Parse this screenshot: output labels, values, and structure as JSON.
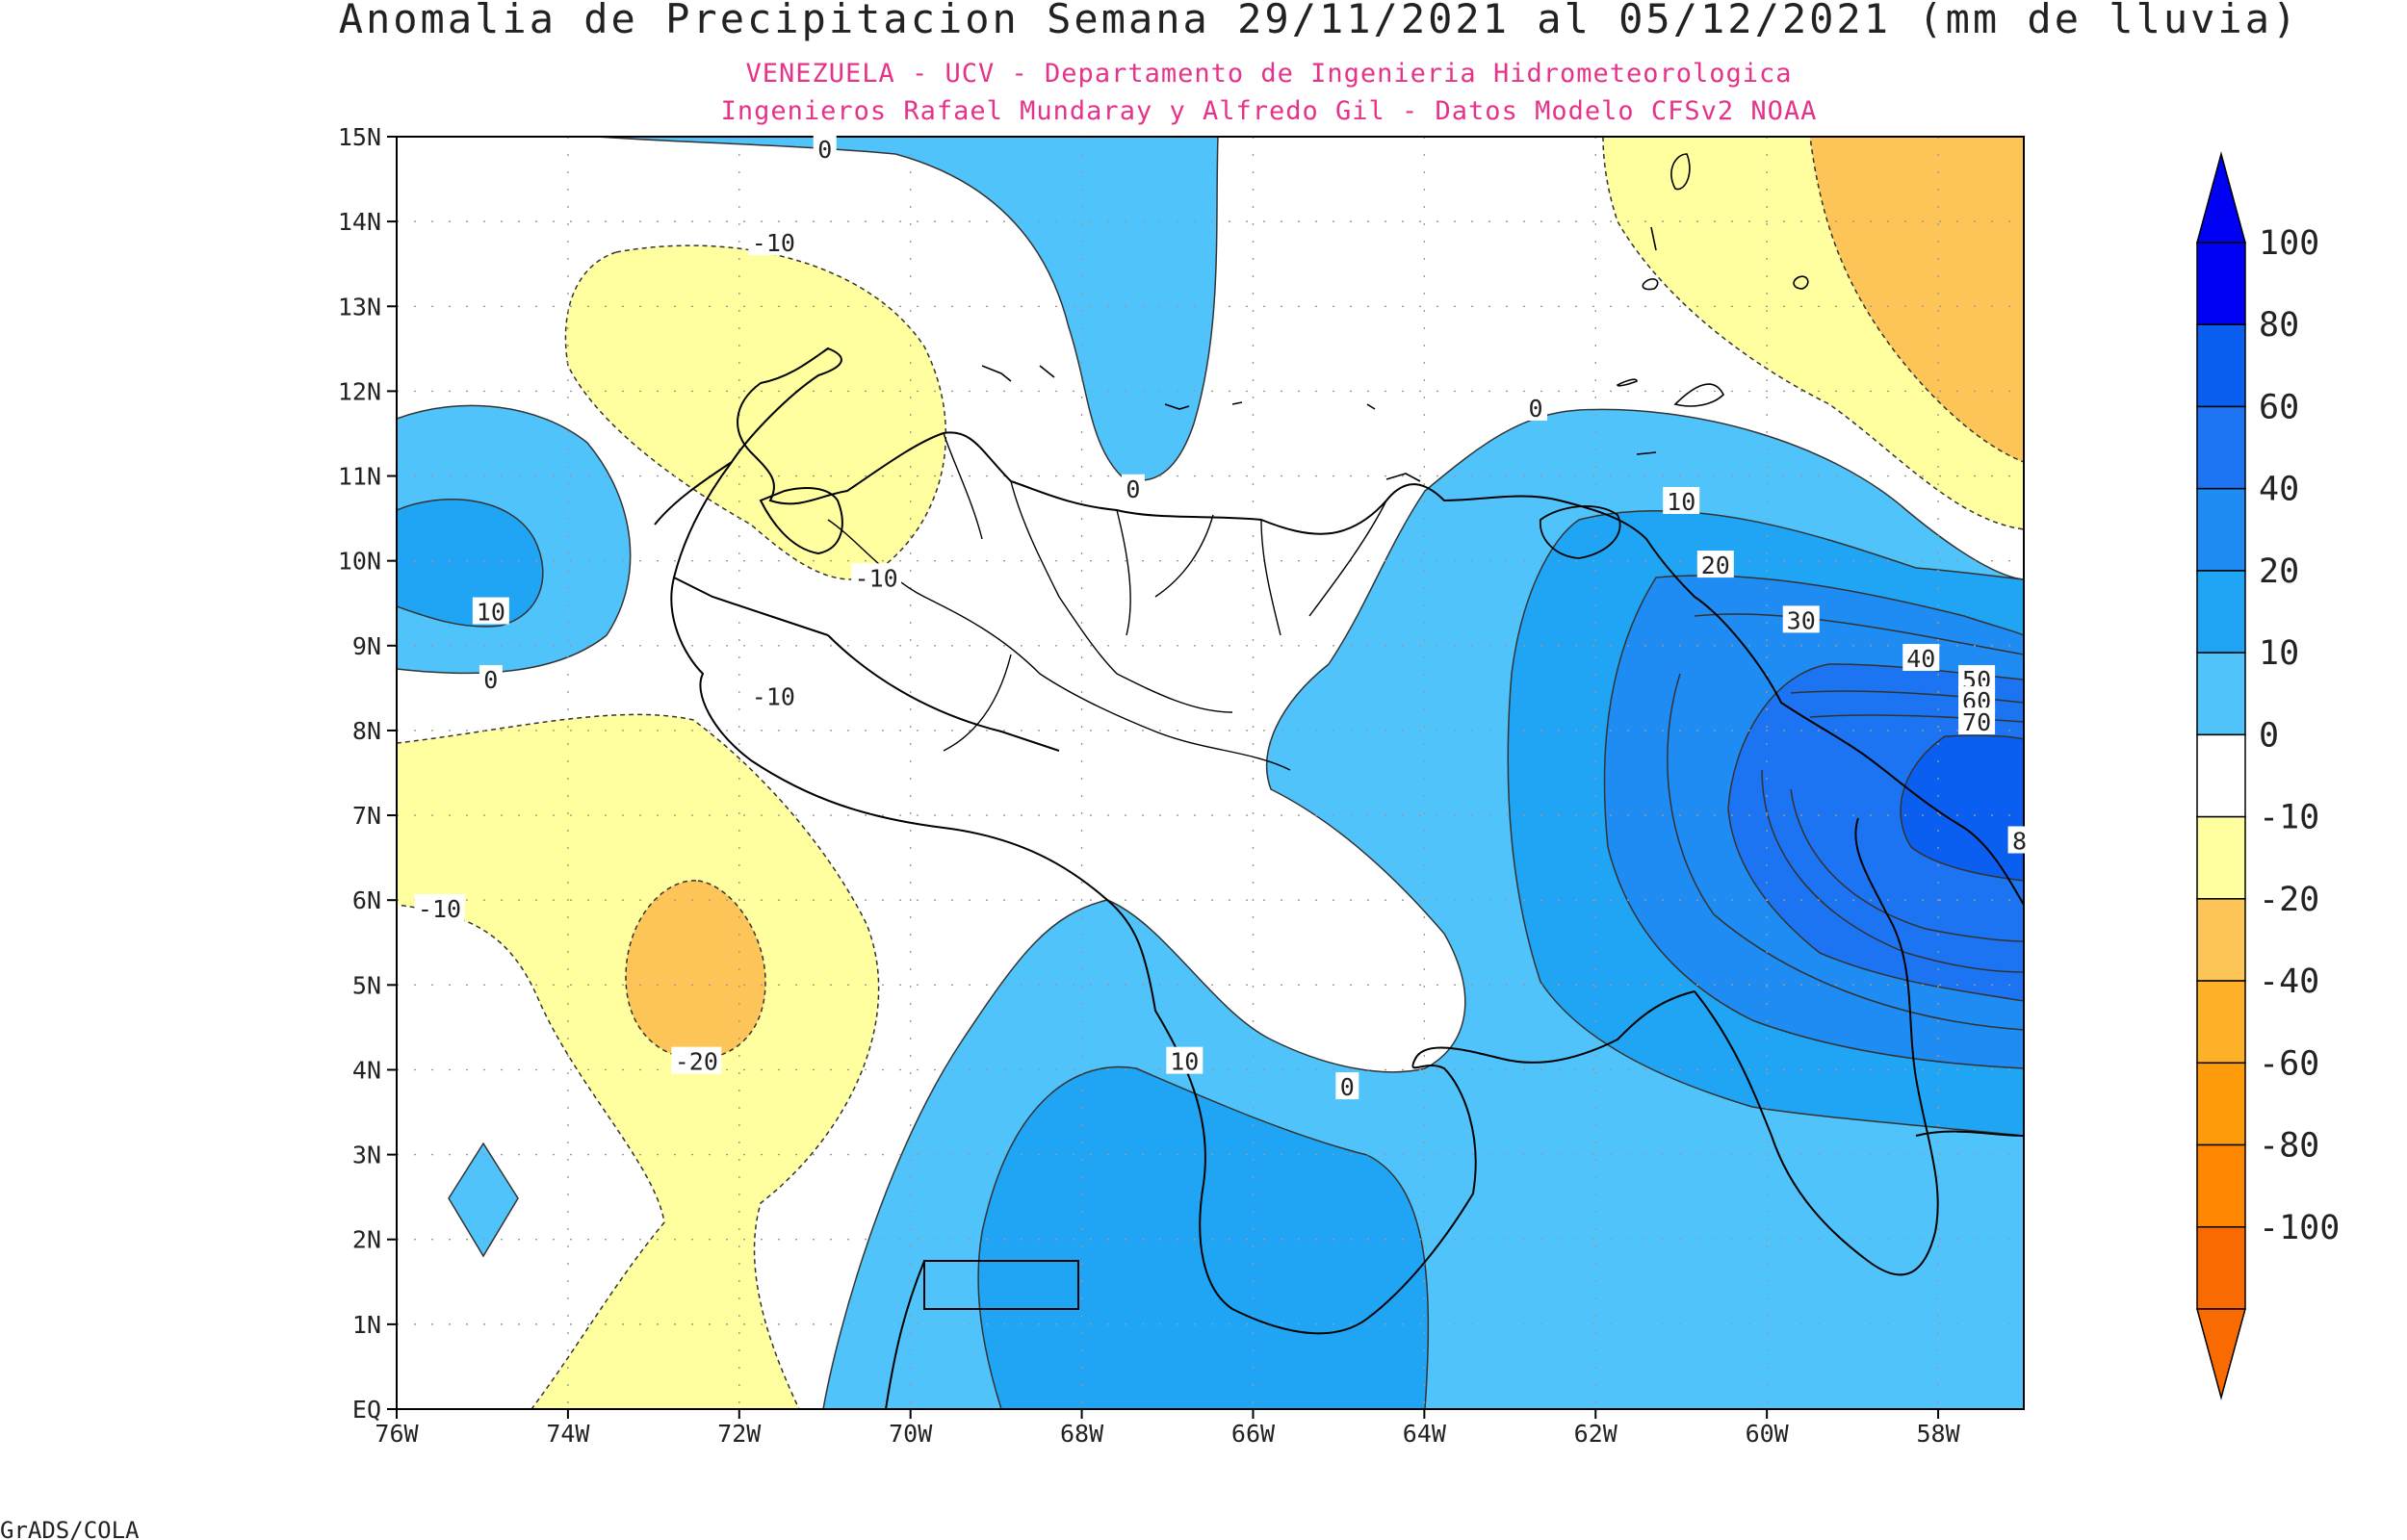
{
  "title": "Anomalia de Precipitacion Semana 29/11/2021 al 05/12/2021 (mm de lluvia)",
  "subtitle_line1": "VENEZUELA - UCV - Departamento de Ingenieria Hidrometeorologica",
  "subtitle_line2": "Ingenieros Rafael Mundaray y Alfredo Gil - Datos Modelo CFSv2 NOAA",
  "footer": "GrADS/COLA",
  "map": {
    "lon_range": [
      -76,
      -57
    ],
    "lat_range": [
      0,
      15
    ],
    "lon_ticks": [
      {
        "value": -76,
        "label": "76W"
      },
      {
        "value": -74,
        "label": "74W"
      },
      {
        "value": -72,
        "label": "72W"
      },
      {
        "value": -70,
        "label": "70W"
      },
      {
        "value": -68,
        "label": "68W"
      },
      {
        "value": -66,
        "label": "66W"
      },
      {
        "value": -64,
        "label": "64W"
      },
      {
        "value": -62,
        "label": "62W"
      },
      {
        "value": -60,
        "label": "60W"
      },
      {
        "value": -58,
        "label": "58W"
      }
    ],
    "lat_ticks": [
      {
        "value": 0,
        "label": "EQ"
      },
      {
        "value": 1,
        "label": "1N"
      },
      {
        "value": 2,
        "label": "2N"
      },
      {
        "value": 3,
        "label": "3N"
      },
      {
        "value": 4,
        "label": "4N"
      },
      {
        "value": 5,
        "label": "5N"
      },
      {
        "value": 6,
        "label": "6N"
      },
      {
        "value": 7,
        "label": "7N"
      },
      {
        "value": 8,
        "label": "8N"
      },
      {
        "value": 9,
        "label": "9N"
      },
      {
        "value": 10,
        "label": "10N"
      },
      {
        "value": 11,
        "label": "11N"
      },
      {
        "value": 12,
        "label": "12N"
      },
      {
        "value": 13,
        "label": "13N"
      },
      {
        "value": 14,
        "label": "14N"
      },
      {
        "value": 15,
        "label": "15N"
      }
    ],
    "grid": true
  },
  "colorbar": {
    "levels": [
      {
        "label": "100",
        "color": "#0000f5"
      },
      {
        "label": "80",
        "color": "#0a5ff0"
      },
      {
        "label": "60",
        "color": "#1c74f2"
      },
      {
        "label": "40",
        "color": "#1e8cf2"
      },
      {
        "label": "20",
        "color": "#1fa5f3"
      },
      {
        "label": "10",
        "color": "#50c4fa"
      },
      {
        "label": "0",
        "color": "#ffffff"
      },
      {
        "label": "-10",
        "color": "#ffffa0"
      },
      {
        "label": "-20",
        "color": "#fdc557"
      },
      {
        "label": "-40",
        "color": "#fcb128"
      },
      {
        "label": "-60",
        "color": "#fd9b0a"
      },
      {
        "label": "-80",
        "color": "#fe8600"
      },
      {
        "label": "-100",
        "color": "#f96a00"
      }
    ]
  },
  "contour_labels": [
    {
      "text": "0",
      "lon": -71.0,
      "lat": 14.85
    },
    {
      "text": "-10",
      "lon": -71.6,
      "lat": 13.75
    },
    {
      "text": "0",
      "lon": -67.4,
      "lat": 10.85
    },
    {
      "text": "0",
      "lon": -62.7,
      "lat": 11.8
    },
    {
      "text": "10",
      "lon": -74.9,
      "lat": 9.4
    },
    {
      "text": "0",
      "lon": -74.9,
      "lat": 8.6
    },
    {
      "text": "-10",
      "lon": -71.6,
      "lat": 8.4
    },
    {
      "text": "-10",
      "lon": -70.4,
      "lat": 9.8
    },
    {
      "text": "-10",
      "lon": -75.5,
      "lat": 5.9
    },
    {
      "text": "-20",
      "lon": -72.5,
      "lat": 4.1
    },
    {
      "text": "10",
      "lon": -66.8,
      "lat": 4.1
    },
    {
      "text": "0",
      "lon": -64.9,
      "lat": 3.8
    },
    {
      "text": "10",
      "lon": -61.0,
      "lat": 10.7
    },
    {
      "text": "20",
      "lon": -60.6,
      "lat": 9.95
    },
    {
      "text": "30",
      "lon": -59.6,
      "lat": 9.3
    },
    {
      "text": "40",
      "lon": -58.2,
      "lat": 8.85
    },
    {
      "text": "50",
      "lon": -57.55,
      "lat": 8.6
    },
    {
      "text": "60",
      "lon": -57.55,
      "lat": 8.35
    },
    {
      "text": "70",
      "lon": -57.55,
      "lat": 8.1
    },
    {
      "text": "8",
      "lon": -57.05,
      "lat": 6.7
    }
  ]
}
